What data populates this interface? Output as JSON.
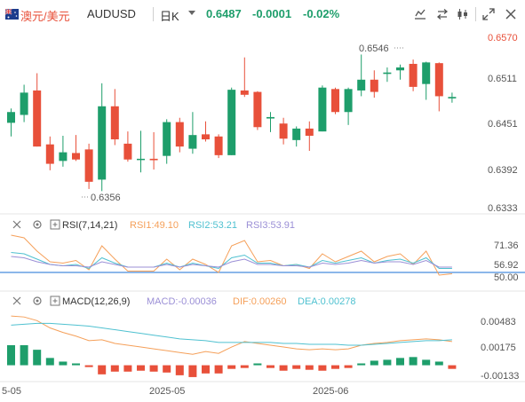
{
  "header": {
    "pair_name": "澳元/美元",
    "symbol": "AUDUSD",
    "period": "日K",
    "price": "0.6487",
    "change": "-0.0001",
    "change_pct": "-0.02%"
  },
  "icons": [
    "au-flag-icon",
    "chevron-down-icon",
    "draw-tool-icon",
    "compare-icon",
    "candle-style-icon",
    "fullscreen-icon",
    "close-icon"
  ],
  "colors": {
    "up": "#1e9e6b",
    "down": "#e8503a",
    "rsi1": "#f5a05a",
    "rsi2": "#4fc1d0",
    "rsi3": "#9b8fd6",
    "macd_dif": "#f5a05a",
    "macd_dea": "#4fc1d0"
  },
  "main_chart": {
    "y_ticks": [
      "0.6570",
      "0.6511",
      "0.6451",
      "0.6392",
      "0.6333"
    ],
    "y_range": [
      0.6333,
      0.657
    ],
    "high_label": "0.6546",
    "low_label": "0.6356",
    "candles": [
      {
        "o": 0.6451,
        "h": 0.6471,
        "l": 0.6432,
        "c": 0.6466
      },
      {
        "o": 0.6462,
        "h": 0.6504,
        "l": 0.6452,
        "c": 0.6493
      },
      {
        "o": 0.6496,
        "h": 0.652,
        "l": 0.6418,
        "c": 0.6418
      },
      {
        "o": 0.6421,
        "h": 0.6432,
        "l": 0.6385,
        "c": 0.6394
      },
      {
        "o": 0.6398,
        "h": 0.6433,
        "l": 0.639,
        "c": 0.641
      },
      {
        "o": 0.6409,
        "h": 0.6434,
        "l": 0.6398,
        "c": 0.64
      },
      {
        "o": 0.6414,
        "h": 0.6422,
        "l": 0.6359,
        "c": 0.6369
      },
      {
        "o": 0.6372,
        "h": 0.6506,
        "l": 0.6356,
        "c": 0.6474
      },
      {
        "o": 0.6474,
        "h": 0.6498,
        "l": 0.642,
        "c": 0.6428
      },
      {
        "o": 0.6422,
        "h": 0.6439,
        "l": 0.6397,
        "c": 0.64
      },
      {
        "o": 0.6401,
        "h": 0.644,
        "l": 0.6382,
        "c": 0.6401
      },
      {
        "o": 0.6401,
        "h": 0.6438,
        "l": 0.6386,
        "c": 0.6399
      },
      {
        "o": 0.6405,
        "h": 0.6456,
        "l": 0.6394,
        "c": 0.6452
      },
      {
        "o": 0.6452,
        "h": 0.6458,
        "l": 0.641,
        "c": 0.6418
      },
      {
        "o": 0.6415,
        "h": 0.6466,
        "l": 0.6408,
        "c": 0.6434
      },
      {
        "o": 0.6435,
        "h": 0.6453,
        "l": 0.6425,
        "c": 0.6428
      },
      {
        "o": 0.6432,
        "h": 0.6435,
        "l": 0.6402,
        "c": 0.6406
      },
      {
        "o": 0.6406,
        "h": 0.65,
        "l": 0.6406,
        "c": 0.6497
      },
      {
        "o": 0.6496,
        "h": 0.6542,
        "l": 0.6487,
        "c": 0.649
      },
      {
        "o": 0.6494,
        "h": 0.6495,
        "l": 0.6441,
        "c": 0.6445
      },
      {
        "o": 0.6457,
        "h": 0.6466,
        "l": 0.6438,
        "c": 0.6459
      },
      {
        "o": 0.645,
        "h": 0.6458,
        "l": 0.6421,
        "c": 0.6429
      },
      {
        "o": 0.6427,
        "h": 0.6446,
        "l": 0.6418,
        "c": 0.6443
      },
      {
        "o": 0.6443,
        "h": 0.6453,
        "l": 0.6412,
        "c": 0.6433
      },
      {
        "o": 0.6439,
        "h": 0.6503,
        "l": 0.6439,
        "c": 0.65
      },
      {
        "o": 0.6498,
        "h": 0.65,
        "l": 0.6463,
        "c": 0.6466
      },
      {
        "o": 0.6466,
        "h": 0.65,
        "l": 0.6448,
        "c": 0.6498
      },
      {
        "o": 0.6496,
        "h": 0.6546,
        "l": 0.6488,
        "c": 0.6511
      },
      {
        "o": 0.6511,
        "h": 0.6524,
        "l": 0.6486,
        "c": 0.6494
      },
      {
        "o": 0.6519,
        "h": 0.6528,
        "l": 0.6508,
        "c": 0.6521
      },
      {
        "o": 0.6524,
        "h": 0.6532,
        "l": 0.6511,
        "c": 0.6528
      },
      {
        "o": 0.6533,
        "h": 0.6539,
        "l": 0.6495,
        "c": 0.6501
      },
      {
        "o": 0.6505,
        "h": 0.6536,
        "l": 0.6483,
        "c": 0.6535
      },
      {
        "o": 0.6534,
        "h": 0.6535,
        "l": 0.6467,
        "c": 0.6488
      },
      {
        "o": 0.6485,
        "h": 0.6493,
        "l": 0.6479,
        "c": 0.6487
      }
    ]
  },
  "rsi": {
    "label": "RSI(7,14,21)",
    "rsi1": "RSI1:49.10",
    "rsi2": "RSI2:53.21",
    "rsi3": "RSI3:53.91",
    "y_ticks": [
      "71.36",
      "56.92",
      "50.00"
    ],
    "y_range": [
      40,
      80
    ],
    "rsi1_values": [
      78,
      76,
      66,
      58,
      57,
      59,
      52,
      70,
      60,
      51,
      51,
      51,
      60,
      52,
      60,
      56,
      50,
      70,
      74,
      58,
      59,
      55,
      56,
      53,
      64,
      58,
      62,
      66,
      58,
      62,
      64,
      56,
      66,
      48,
      49
    ],
    "rsi2_values": [
      65,
      64,
      60,
      56,
      55,
      56,
      53,
      61,
      57,
      54,
      54,
      54,
      57,
      54,
      57,
      55,
      53,
      61,
      63,
      57,
      57,
      55,
      56,
      54,
      59,
      57,
      59,
      61,
      57,
      59,
      60,
      57,
      61,
      53,
      53
    ],
    "rsi3_values": [
      62,
      61,
      58,
      56,
      55,
      55,
      54,
      58,
      56,
      54,
      54,
      54,
      56,
      54,
      56,
      55,
      54,
      58,
      60,
      56,
      56,
      55,
      55,
      54,
      57,
      56,
      57,
      59,
      57,
      58,
      58,
      56,
      59,
      54,
      54
    ]
  },
  "macd": {
    "label": "MACD(12,26,9)",
    "macd": "MACD:-0.00036",
    "dif": "DIF:0.00260",
    "dea": "DEA:0.00278",
    "y_ticks": [
      "0.00483",
      "0.00175",
      "-0.00133"
    ],
    "y_range": [
      -0.0016,
      0.006
    ],
    "hist": [
      0.0022,
      0.0022,
      0.0017,
      0.0008,
      0.0004,
      0.0002,
      -0.0002,
      -0.001,
      -0.0007,
      -0.0007,
      -0.0006,
      -0.0007,
      -0.0008,
      -0.0011,
      -0.0013,
      -0.0009,
      -0.0009,
      -0.0004,
      -0.0003,
      0.0002,
      -0.0003,
      -0.0006,
      -0.0004,
      -0.0005,
      -0.0006,
      -0.0004,
      -0.0003,
      0.0002,
      0.0005,
      0.0006,
      0.0008,
      0.0009,
      0.0006,
      0.0004,
      -0.0004
    ],
    "dif_values": [
      0.0054,
      0.0053,
      0.0049,
      0.0041,
      0.0036,
      0.0032,
      0.0027,
      0.0028,
      0.0024,
      0.0022,
      0.002,
      0.0018,
      0.0016,
      0.0014,
      0.0012,
      0.0015,
      0.0013,
      0.002,
      0.0026,
      0.0024,
      0.0022,
      0.002,
      0.0018,
      0.0017,
      0.0018,
      0.0017,
      0.0018,
      0.0022,
      0.0024,
      0.0025,
      0.0027,
      0.0028,
      0.0029,
      0.0028,
      0.0026
    ],
    "dea_values": [
      0.0044,
      0.0045,
      0.0046,
      0.0046,
      0.0045,
      0.0044,
      0.0043,
      0.0041,
      0.0039,
      0.0037,
      0.0035,
      0.0033,
      0.0031,
      0.0029,
      0.0028,
      0.0027,
      0.0025,
      0.0025,
      0.0025,
      0.0025,
      0.0025,
      0.0024,
      0.0024,
      0.0023,
      0.0023,
      0.0023,
      0.0022,
      0.0022,
      0.0023,
      0.0024,
      0.0025,
      0.0026,
      0.0027,
      0.0027,
      0.0028
    ]
  },
  "x_axis": {
    "labels": [
      "5-05",
      "2025-05",
      "2025-06"
    ]
  }
}
